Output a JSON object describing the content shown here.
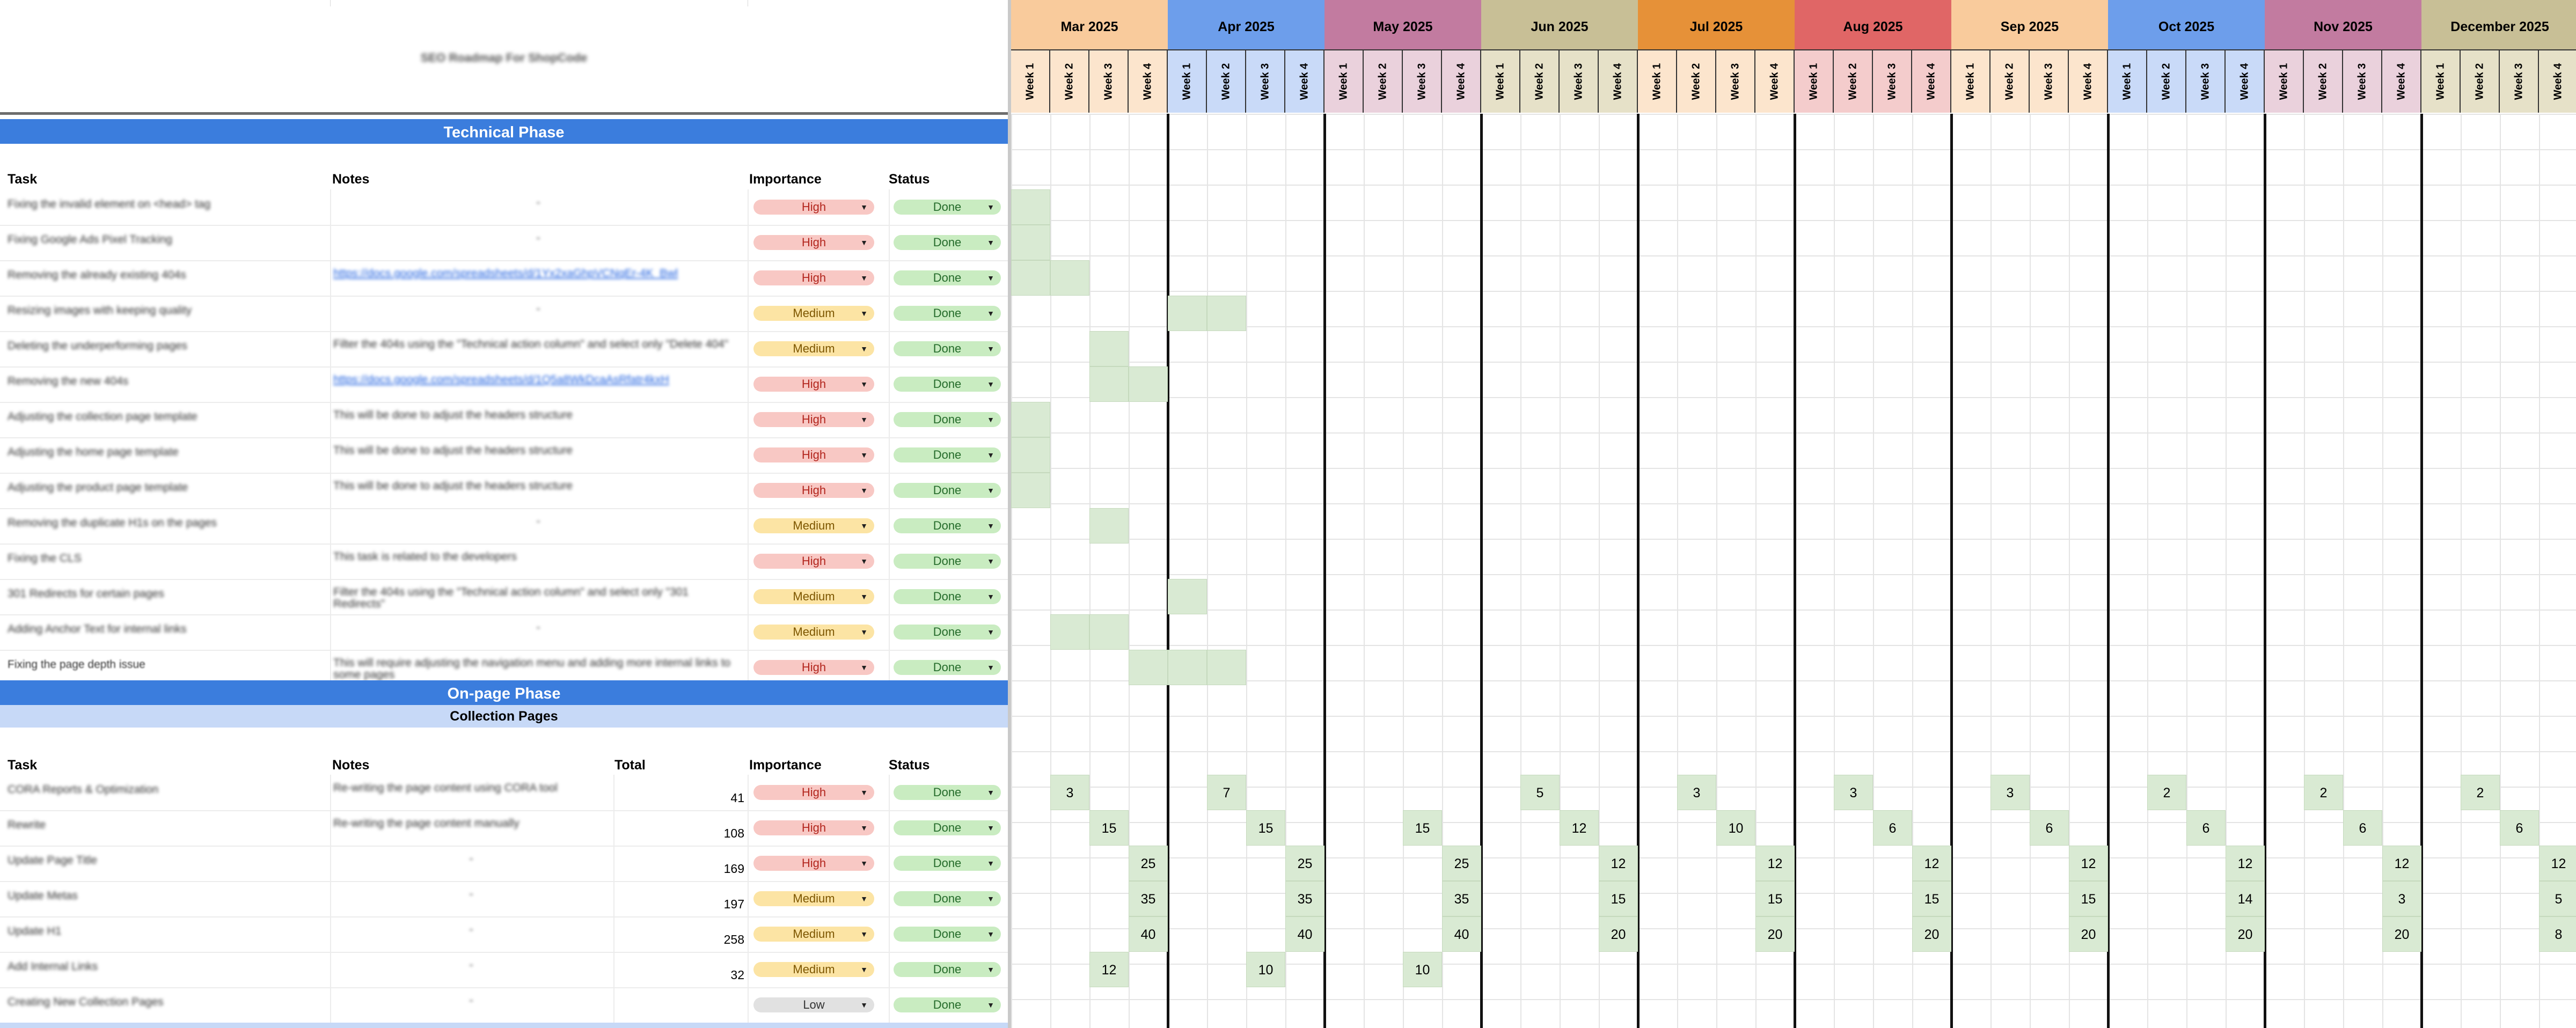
{
  "sheet_title": "SEO Roadmap For ShopCode",
  "technical_phase": {
    "label": "Technical Phase",
    "headers": {
      "task": "Task",
      "notes": "Notes",
      "importance": "Importance",
      "status": "Status"
    },
    "rows": [
      {
        "task": "Fixing the invalid element on <head> tag",
        "notes": "-",
        "importance": "High",
        "status": "Done"
      },
      {
        "task": "Fixing Google Ads Pixel Tracking",
        "notes": "-",
        "importance": "High",
        "status": "Done"
      },
      {
        "task": "Removing the already existing 404s",
        "notes": "https://docs.google.com/spreadsheets/d/1Yx2xaGhpVCNqEr-4K_Bwl",
        "importance": "High",
        "status": "Done"
      },
      {
        "task": "Resizing images with keeping quality",
        "notes": "-",
        "importance": "Medium",
        "status": "Done"
      },
      {
        "task": "Deleting the underperforming pages",
        "notes": "Filter the 404s using the \"Technical action column\" and select only \"Delete 404\"",
        "importance": "Medium",
        "status": "Done"
      },
      {
        "task": "Removing the new 404s",
        "notes": "https://docs.google.com/spreadsheets/d/1Q5a8WkDcaAsRfatr4kxH",
        "importance": "High",
        "status": "Done"
      },
      {
        "task": "Adjusting the collection page template",
        "notes": "This will be done to adjust the headers structure",
        "importance": "High",
        "status": "Done"
      },
      {
        "task": "Adjusting the home page template",
        "notes": "This will be done to adjust the headers structure",
        "importance": "High",
        "status": "Done"
      },
      {
        "task": "Adjusting the product page template",
        "notes": "This will be done to adjust the headers structure",
        "importance": "High",
        "status": "Done"
      },
      {
        "task": "Removing the duplicate H1s on the pages",
        "notes": "-",
        "importance": "Medium",
        "status": "Done"
      },
      {
        "task": "Fixing the CLS",
        "notes": "This task is related to the developers",
        "importance": "High",
        "status": "Done"
      },
      {
        "task": "301 Redirects for certain pages",
        "notes": "Filter the 404s using the \"Technical action column\" and select only \"301 Redirects\"",
        "importance": "Medium",
        "status": "Done"
      },
      {
        "task": "Adding Anchor Text for internal links",
        "notes": "-",
        "importance": "Medium",
        "status": "Done"
      },
      {
        "task": "Fixing the page depth issue",
        "notes": "This will require adjusting the navigation menu and adding more internal links to some pages",
        "importance": "High",
        "status": "Done"
      }
    ]
  },
  "onpage_phase": {
    "label": "On-page Phase",
    "sub_label": "Collection Pages",
    "headers": {
      "task": "Task",
      "notes": "Notes",
      "total": "Total",
      "importance": "Importance",
      "status": "Status"
    },
    "rows": [
      {
        "task": "CORA Reports & Optimization",
        "notes": "Re-writing the page content using CORA tool",
        "total": "41",
        "importance": "High",
        "status": "Done"
      },
      {
        "task": "Rewrite",
        "notes": "Re-writing the page content manually",
        "total": "108",
        "importance": "High",
        "status": "Done"
      },
      {
        "task": "Update Page Title",
        "notes": "-",
        "total": "169",
        "importance": "High",
        "status": "Done"
      },
      {
        "task": "Update Metas",
        "notes": "-",
        "total": "197",
        "importance": "Medium",
        "status": "Done"
      },
      {
        "task": "Update H1",
        "notes": "-",
        "total": "258",
        "importance": "Medium",
        "status": "Done"
      },
      {
        "task": "Add Internal Links",
        "notes": "-",
        "total": "32",
        "importance": "Medium",
        "status": "Done"
      },
      {
        "task": "Creating New Collection Pages",
        "notes": "-",
        "total": "",
        "importance": "Low",
        "status": "Done"
      }
    ]
  },
  "months": [
    {
      "label": "Mar 2025",
      "color": "#f9cb9c"
    },
    {
      "label": "Apr 2025",
      "color": "#6d9eeb"
    },
    {
      "label": "May 2025",
      "color": "#c27ba0"
    },
    {
      "label": "Jun 2025",
      "color": "#c8bf96"
    },
    {
      "label": "Jul 2025",
      "color": "#e69138"
    },
    {
      "label": "Aug 2025",
      "color": "#e06666"
    },
    {
      "label": "Sep 2025",
      "color": "#f9cb9c"
    },
    {
      "label": "Oct 2025",
      "color": "#6d9eeb"
    },
    {
      "label": "Nov 2025",
      "color": "#c27ba0"
    },
    {
      "label": "December 2025",
      "color": "#c8bf96"
    }
  ],
  "week_colors": [
    "#fce5cd",
    "#c9daf8",
    "#ead1dc",
    "#e6e1c8",
    "#fce5cd",
    "#f4cccc",
    "#fce5cd",
    "#c9daf8",
    "#ead1dc",
    "#e6e1c8"
  ],
  "week_labels": [
    "Week 1",
    "Week 2",
    "Week 3",
    "Week 4"
  ],
  "technical_schedule": [
    [
      0
    ],
    [
      0
    ],
    [
      0,
      1
    ],
    [
      4,
      5
    ],
    [
      2
    ],
    [
      2,
      3
    ],
    [
      0
    ],
    [
      0
    ],
    [
      0
    ],
    [
      2
    ],
    [],
    [
      4
    ],
    [
      1,
      2
    ],
    [
      3,
      4,
      5
    ]
  ],
  "onpage_schedule": [
    [
      {
        "w": 1,
        "v": "3"
      },
      {
        "w": 5,
        "v": "7"
      },
      {
        "w": 13,
        "v": "5"
      },
      {
        "w": 17,
        "v": "3"
      },
      {
        "w": 21,
        "v": "3"
      },
      {
        "w": 25,
        "v": "3"
      },
      {
        "w": 29,
        "v": "2"
      },
      {
        "w": 33,
        "v": "2"
      },
      {
        "w": 37,
        "v": "2"
      }
    ],
    [
      {
        "w": 2,
        "v": "15"
      },
      {
        "w": 6,
        "v": "15"
      },
      {
        "w": 10,
        "v": "15"
      },
      {
        "w": 14,
        "v": "12"
      },
      {
        "w": 18,
        "v": "10"
      },
      {
        "w": 22,
        "v": "6"
      },
      {
        "w": 26,
        "v": "6"
      },
      {
        "w": 30,
        "v": "6"
      },
      {
        "w": 34,
        "v": "6"
      },
      {
        "w": 38,
        "v": "6"
      }
    ],
    [
      {
        "w": 3,
        "v": "25"
      },
      {
        "w": 7,
        "v": "25"
      },
      {
        "w": 11,
        "v": "25"
      },
      {
        "w": 15,
        "v": "12"
      },
      {
        "w": 19,
        "v": "12"
      },
      {
        "w": 23,
        "v": "12"
      },
      {
        "w": 27,
        "v": "12"
      },
      {
        "w": 31,
        "v": "12"
      },
      {
        "w": 35,
        "v": "12"
      },
      {
        "w": 39,
        "v": "12"
      }
    ],
    [
      {
        "w": 3,
        "v": "35"
      },
      {
        "w": 7,
        "v": "35"
      },
      {
        "w": 11,
        "v": "35"
      },
      {
        "w": 15,
        "v": "15"
      },
      {
        "w": 19,
        "v": "15"
      },
      {
        "w": 23,
        "v": "15"
      },
      {
        "w": 27,
        "v": "15"
      },
      {
        "w": 31,
        "v": "14"
      },
      {
        "w": 35,
        "v": "3"
      },
      {
        "w": 39,
        "v": "5"
      }
    ],
    [
      {
        "w": 3,
        "v": "40"
      },
      {
        "w": 7,
        "v": "40"
      },
      {
        "w": 11,
        "v": "40"
      },
      {
        "w": 15,
        "v": "20"
      },
      {
        "w": 19,
        "v": "20"
      },
      {
        "w": 23,
        "v": "20"
      },
      {
        "w": 27,
        "v": "20"
      },
      {
        "w": 31,
        "v": "20"
      },
      {
        "w": 35,
        "v": "20"
      },
      {
        "w": 39,
        "v": "8"
      }
    ],
    [
      {
        "w": 2,
        "v": "12"
      },
      {
        "w": 6,
        "v": "10"
      },
      {
        "w": 10,
        "v": "10"
      }
    ],
    []
  ]
}
